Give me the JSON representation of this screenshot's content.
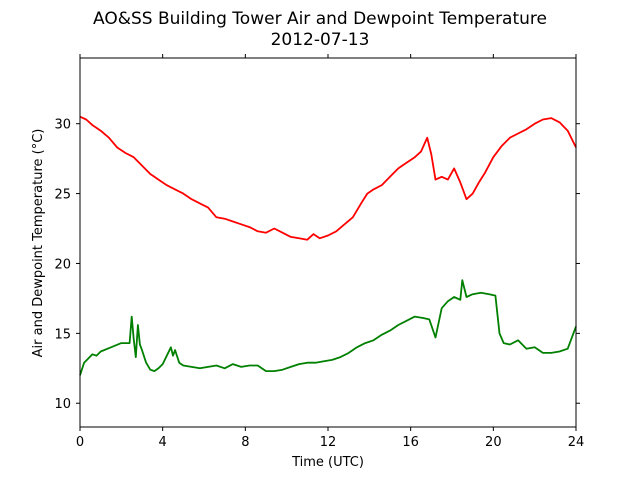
{
  "chart_data": {
    "type": "line",
    "title": "AO&SS Building Tower Air and Dewpoint Temperature",
    "subtitle": "2012-07-13",
    "xlabel": "Time (UTC)",
    "ylabel": "Air and Dewpoint Temperature (°C)",
    "xlim": [
      0,
      24
    ],
    "ylim": [
      8.3,
      34.7
    ],
    "xticks": [
      0,
      4,
      8,
      12,
      16,
      20,
      24
    ],
    "yticks": [
      10,
      15,
      20,
      25,
      30
    ],
    "grid": false,
    "legend": "none",
    "series": [
      {
        "color": "#ff0000",
        "x": [
          0,
          0.3,
          0.6,
          1,
          1.4,
          1.8,
          2.2,
          2.6,
          3,
          3.4,
          3.8,
          4.2,
          4.6,
          5,
          5.4,
          5.8,
          6.2,
          6.6,
          7,
          7.4,
          7.8,
          8.2,
          8.6,
          9,
          9.4,
          9.8,
          10.2,
          10.6,
          11,
          11.3,
          11.6,
          12,
          12.4,
          12.8,
          13.2,
          13.6,
          13.9,
          14.2,
          14.6,
          15,
          15.4,
          15.8,
          16.2,
          16.5,
          16.8,
          17,
          17.2,
          17.5,
          17.8,
          18.1,
          18.4,
          18.7,
          19,
          19.3,
          19.6,
          20,
          20.4,
          20.8,
          21.2,
          21.6,
          22,
          22.4,
          22.8,
          23.2,
          23.6,
          24
        ],
        "values": [
          30.5,
          30.3,
          29.9,
          29.5,
          29.0,
          28.3,
          27.9,
          27.6,
          27.0,
          26.4,
          26.0,
          25.6,
          25.3,
          25.0,
          24.6,
          24.3,
          24.0,
          23.3,
          23.2,
          23.0,
          22.8,
          22.6,
          22.3,
          22.2,
          22.5,
          22.2,
          21.9,
          21.8,
          21.7,
          22.1,
          21.8,
          22.0,
          22.3,
          22.8,
          23.3,
          24.3,
          25.0,
          25.3,
          25.6,
          26.2,
          26.8,
          27.2,
          27.6,
          28.0,
          29.0,
          27.8,
          26.0,
          26.2,
          26.0,
          26.8,
          25.8,
          24.6,
          25.0,
          25.8,
          26.5,
          27.6,
          28.4,
          29.0,
          29.3,
          29.6,
          30.0,
          30.3,
          30.4,
          30.1,
          29.5,
          28.3
        ]
      },
      {
        "color": "#008000",
        "x": [
          0,
          0.2,
          0.4,
          0.6,
          0.8,
          1,
          1.5,
          2,
          2.4,
          2.5,
          2.6,
          2.7,
          2.8,
          2.9,
          3,
          3.2,
          3.4,
          3.6,
          3.8,
          4,
          4.2,
          4.4,
          4.5,
          4.6,
          4.8,
          5,
          5.4,
          5.8,
          6.2,
          6.6,
          7,
          7.4,
          7.8,
          8.2,
          8.6,
          9,
          9.4,
          9.8,
          10.2,
          10.6,
          11,
          11.4,
          11.8,
          12.2,
          12.6,
          13,
          13.4,
          13.8,
          14.2,
          14.6,
          15,
          15.4,
          15.8,
          16.2,
          16.6,
          16.9,
          17.2,
          17.5,
          17.8,
          18.1,
          18.4,
          18.5,
          18.7,
          19,
          19.4,
          19.8,
          20.1,
          20.3,
          20.5,
          20.8,
          21.2,
          21.6,
          22,
          22.4,
          22.8,
          23.2,
          23.6,
          24
        ],
        "values": [
          12.0,
          12.9,
          13.2,
          13.5,
          13.4,
          13.7,
          14.0,
          14.3,
          14.3,
          16.2,
          14.6,
          13.3,
          15.6,
          14.2,
          13.8,
          12.9,
          12.4,
          12.3,
          12.5,
          12.8,
          13.4,
          14.0,
          13.4,
          13.8,
          12.9,
          12.7,
          12.6,
          12.5,
          12.6,
          12.7,
          12.5,
          12.8,
          12.6,
          12.7,
          12.7,
          12.3,
          12.3,
          12.4,
          12.6,
          12.8,
          12.9,
          12.9,
          13.0,
          13.1,
          13.3,
          13.6,
          14.0,
          14.3,
          14.5,
          14.9,
          15.2,
          15.6,
          15.9,
          16.2,
          16.1,
          16.0,
          14.7,
          16.8,
          17.3,
          17.6,
          17.4,
          18.8,
          17.6,
          17.8,
          17.9,
          17.8,
          17.7,
          15.0,
          14.3,
          14.2,
          14.5,
          13.9,
          14.0,
          13.6,
          13.6,
          13.7,
          13.9,
          15.5
        ]
      }
    ]
  }
}
